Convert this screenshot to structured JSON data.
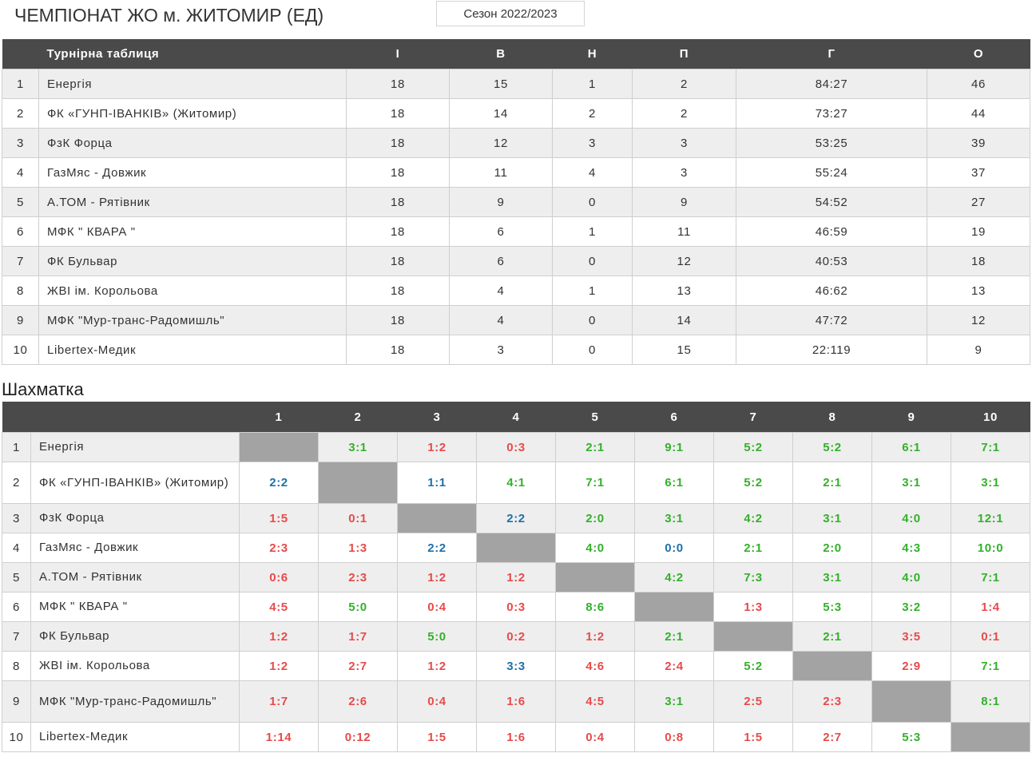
{
  "header": {
    "title": "ЧЕМПІОНАТ ЖО м. ЖИТОМИР (ЕД)",
    "season": "Сезон 2022/2023"
  },
  "standings": {
    "columns": [
      "",
      "Турнірна таблиця",
      "І",
      "В",
      "Н",
      "П",
      "Г",
      "О"
    ],
    "rows": [
      {
        "pos": "1",
        "team": "Енергія",
        "played": "18",
        "won": "15",
        "drawn": "1",
        "lost": "2",
        "goals": "84:27",
        "points": "46"
      },
      {
        "pos": "2",
        "team": "ФК «ГУНП-ІВАНКІВ» (Житомир)",
        "played": "18",
        "won": "14",
        "drawn": "2",
        "lost": "2",
        "goals": "73:27",
        "points": "44"
      },
      {
        "pos": "3",
        "team": "ФзК Форца",
        "played": "18",
        "won": "12",
        "drawn": "3",
        "lost": "3",
        "goals": "53:25",
        "points": "39"
      },
      {
        "pos": "4",
        "team": "ГазМяс - Довжик",
        "played": "18",
        "won": "11",
        "drawn": "4",
        "lost": "3",
        "goals": "55:24",
        "points": "37"
      },
      {
        "pos": "5",
        "team": "А.ТОМ - Рятівник",
        "played": "18",
        "won": "9",
        "drawn": "0",
        "lost": "9",
        "goals": "54:52",
        "points": "27"
      },
      {
        "pos": "6",
        "team": "МФК \" КВАРА \"",
        "played": "18",
        "won": "6",
        "drawn": "1",
        "lost": "11",
        "goals": "46:59",
        "points": "19"
      },
      {
        "pos": "7",
        "team": "ФК Бульвар",
        "played": "18",
        "won": "6",
        "drawn": "0",
        "lost": "12",
        "goals": "40:53",
        "points": "18"
      },
      {
        "pos": "8",
        "team": "ЖВІ ім. Корольова",
        "played": "18",
        "won": "4",
        "drawn": "1",
        "lost": "13",
        "goals": "46:62",
        "points": "13"
      },
      {
        "pos": "9",
        "team": "МФК \"Мур-транс-Радомишль\"",
        "played": "18",
        "won": "4",
        "drawn": "0",
        "lost": "14",
        "goals": "47:72",
        "points": "12"
      },
      {
        "pos": "10",
        "team": "Libertex-Медик",
        "played": "18",
        "won": "3",
        "drawn": "0",
        "lost": "15",
        "goals": "22:119",
        "points": "9"
      }
    ]
  },
  "chess": {
    "title": "Шахматка",
    "columns": [
      "1",
      "2",
      "3",
      "4",
      "5",
      "6",
      "7",
      "8",
      "9",
      "10"
    ],
    "colors": {
      "win": "#33b12a",
      "loss": "#e84a4a",
      "draw": "#1f70a8",
      "diagonal": "#a3a3a3"
    },
    "rows": [
      {
        "pos": "1",
        "team": "Енергія",
        "scores": [
          "",
          "3:1",
          "1:2",
          "0:3",
          "2:1",
          "9:1",
          "5:2",
          "5:2",
          "6:1",
          "7:1"
        ]
      },
      {
        "pos": "2",
        "team": "ФК «ГУНП-ІВАНКІВ» (Житомир)",
        "scores": [
          "2:2",
          "",
          "1:1",
          "4:1",
          "7:1",
          "6:1",
          "5:2",
          "2:1",
          "3:1",
          "3:1"
        ]
      },
      {
        "pos": "3",
        "team": "ФзК Форца",
        "scores": [
          "1:5",
          "0:1",
          "",
          "2:2",
          "2:0",
          "3:1",
          "4:2",
          "3:1",
          "4:0",
          "12:1"
        ]
      },
      {
        "pos": "4",
        "team": "ГазМяс - Довжик",
        "scores": [
          "2:3",
          "1:3",
          "2:2",
          "",
          "4:0",
          "0:0",
          "2:1",
          "2:0",
          "4:3",
          "10:0"
        ]
      },
      {
        "pos": "5",
        "team": "А.ТОМ - Рятівник",
        "scores": [
          "0:6",
          "2:3",
          "1:2",
          "1:2",
          "",
          "4:2",
          "7:3",
          "3:1",
          "4:0",
          "7:1"
        ]
      },
      {
        "pos": "6",
        "team": "МФК \" КВАРА \"",
        "scores": [
          "4:5",
          "5:0",
          "0:4",
          "0:3",
          "8:6",
          "",
          "1:3",
          "5:3",
          "3:2",
          "1:4"
        ]
      },
      {
        "pos": "7",
        "team": "ФК Бульвар",
        "scores": [
          "1:2",
          "1:7",
          "5:0",
          "0:2",
          "1:2",
          "2:1",
          "",
          "2:1",
          "3:5",
          "0:1"
        ]
      },
      {
        "pos": "8",
        "team": "ЖВІ ім. Корольова",
        "scores": [
          "1:2",
          "2:7",
          "1:2",
          "3:3",
          "4:6",
          "2:4",
          "5:2",
          "",
          "2:9",
          "7:1"
        ]
      },
      {
        "pos": "9",
        "team": "МФК \"Мур-транс-Радомишль\"",
        "scores": [
          "1:7",
          "2:6",
          "0:4",
          "1:6",
          "4:5",
          "3:1",
          "2:5",
          "2:3",
          "",
          "8:1"
        ]
      },
      {
        "pos": "10",
        "team": "Libertex-Медик",
        "scores": [
          "1:14",
          "0:12",
          "1:5",
          "1:6",
          "0:4",
          "0:8",
          "1:5",
          "2:7",
          "5:3",
          ""
        ]
      }
    ]
  }
}
